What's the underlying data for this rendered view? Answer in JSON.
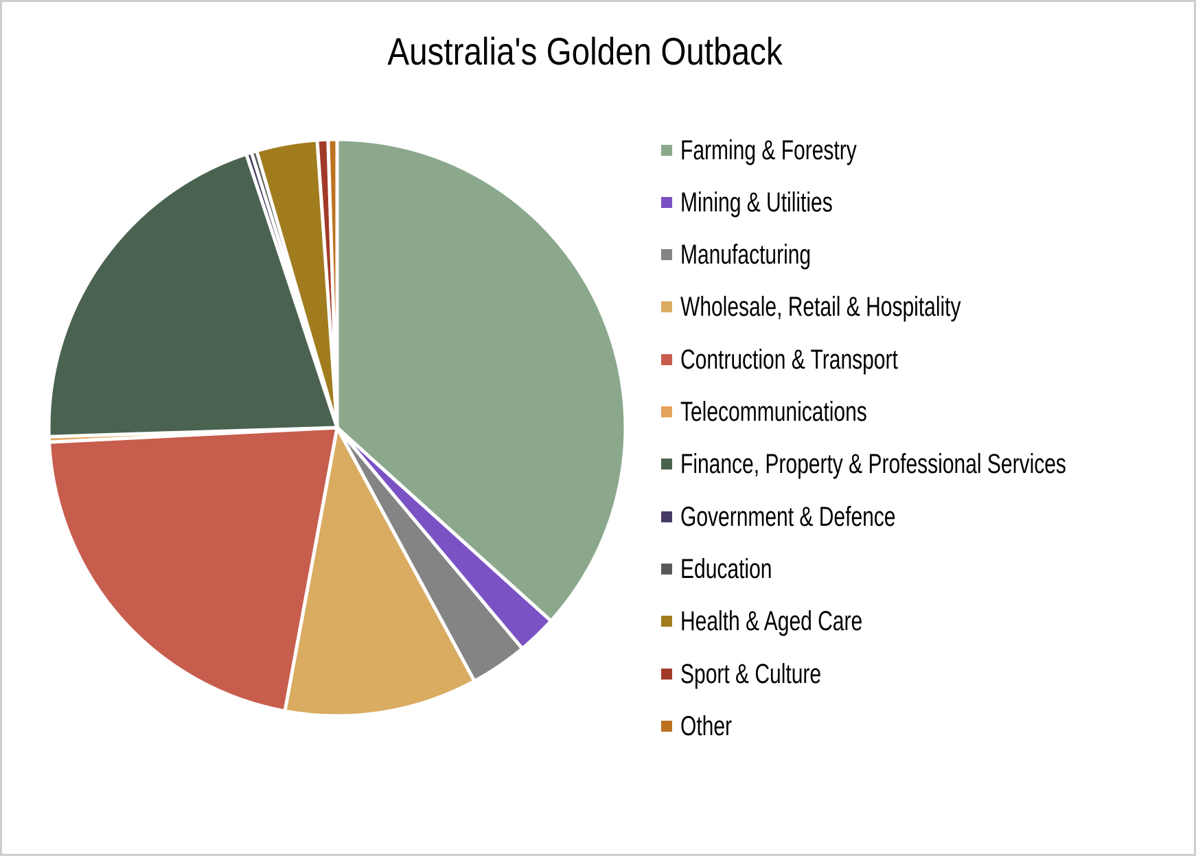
{
  "window": {
    "background": "#ffffff",
    "frame_color": "#cdcdcd",
    "text_color": "#000000"
  },
  "chart_data": {
    "type": "pie",
    "title": "Australia's Golden Outback",
    "legend_position": "right",
    "start_angle_deg": 0,
    "direction": "clockwise",
    "data_labels": "none",
    "slice_border_color": "#ffffff",
    "values_note": "percent of whole, estimated from measured slice angles (chart shows no numeric labels)",
    "categories": [
      "Farming & Forestry",
      "Mining & Utilities",
      "Manufacturing",
      "Wholesale, Retail & Hospitality",
      "Contruction & Transport",
      "Telecommunications",
      "Finance, Property & Professional Services",
      "Government & Defence",
      "Education",
      "Health & Aged Care",
      "Sport & Culture",
      "Other"
    ],
    "values": [
      36.7,
      2.2,
      3.2,
      10.8,
      21.3,
      0.3,
      20.4,
      0.3,
      0.3,
      3.4,
      0.6,
      0.5
    ],
    "colors": [
      "#8BA88D",
      "#7B52C4",
      "#848484",
      "#D9AC62",
      "#C75D4D",
      "#E5A35C",
      "#4A6350",
      "#463963",
      "#595959",
      "#A07C1E",
      "#A23A29",
      "#BC7220"
    ]
  }
}
